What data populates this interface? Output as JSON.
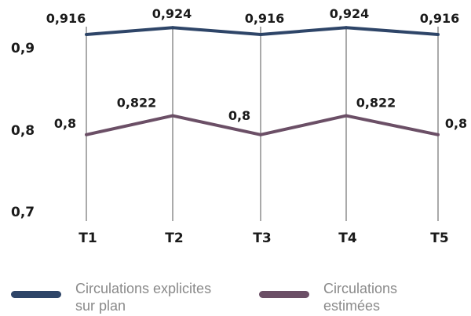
{
  "chart_data": {
    "type": "line",
    "title": "",
    "xlabel": "",
    "ylabel": "",
    "categories": [
      "T1",
      "T2",
      "T3",
      "T4",
      "T5"
    ],
    "yticks": [
      "0,7",
      "0,8",
      "0,9"
    ],
    "ylim": [
      0.7,
      0.94
    ],
    "grid": {
      "vertical": true,
      "horizontal": false
    },
    "legend_position": "bottom",
    "series": [
      {
        "name": "Circulations explicites sur plan",
        "values": [
          0.916,
          0.924,
          0.916,
          0.924,
          0.916
        ],
        "labels": [
          "0,916",
          "0,924",
          "0,916",
          "0,924",
          "0,916"
        ],
        "color": "#2e4568"
      },
      {
        "name": "Circulations estimées",
        "values": [
          0.8,
          0.822,
          0.8,
          0.822,
          0.8
        ],
        "labels": [
          "0,8",
          "0,822",
          "0,8",
          "0,822",
          "0,8"
        ],
        "color": "#6b4f66"
      }
    ]
  }
}
